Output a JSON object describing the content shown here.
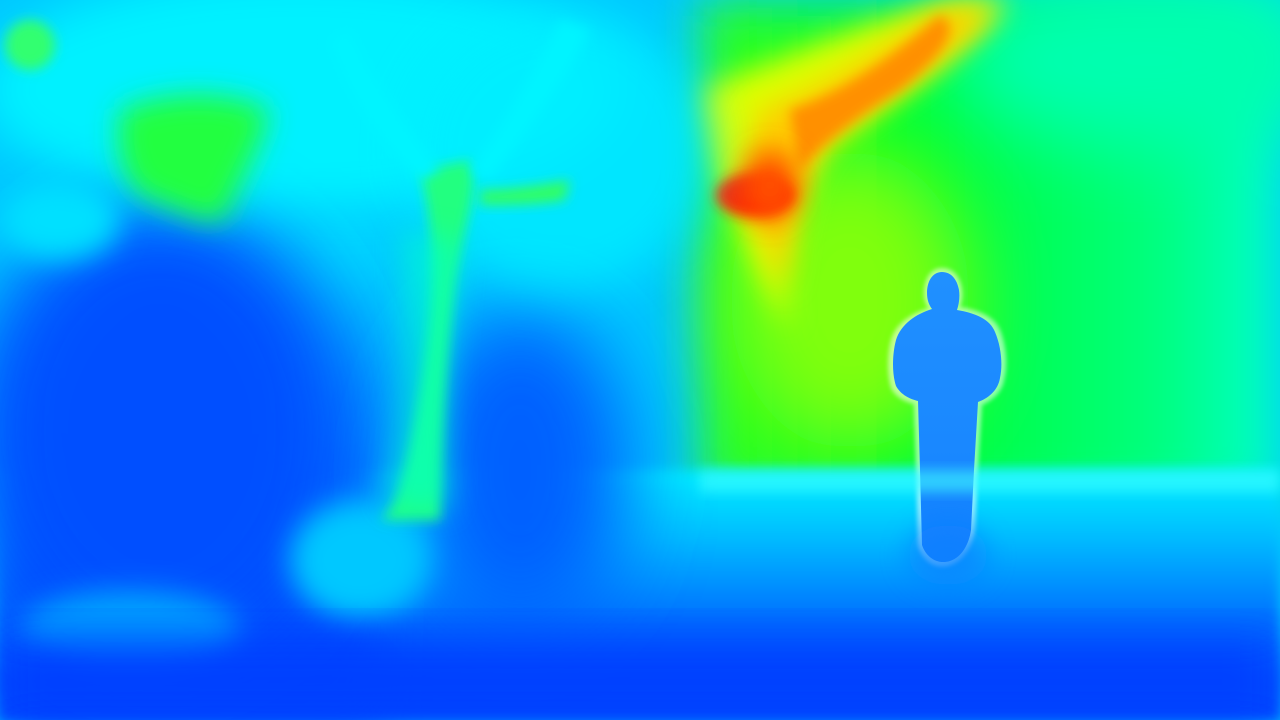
{
  "image": {
    "kind": "false-color depth map",
    "colormap": "jet",
    "palette": {
      "near": "#0044ff",
      "near_mid": "#00aaff",
      "mid": "#00ffee",
      "mid_far": "#00ff44",
      "far": "#ccff00",
      "farther": "#ffaa00",
      "farthest": "#ff1000"
    },
    "subjects": [
      "person-silhouette",
      "tree-silhouette",
      "ground-plane",
      "sky-region"
    ]
  }
}
